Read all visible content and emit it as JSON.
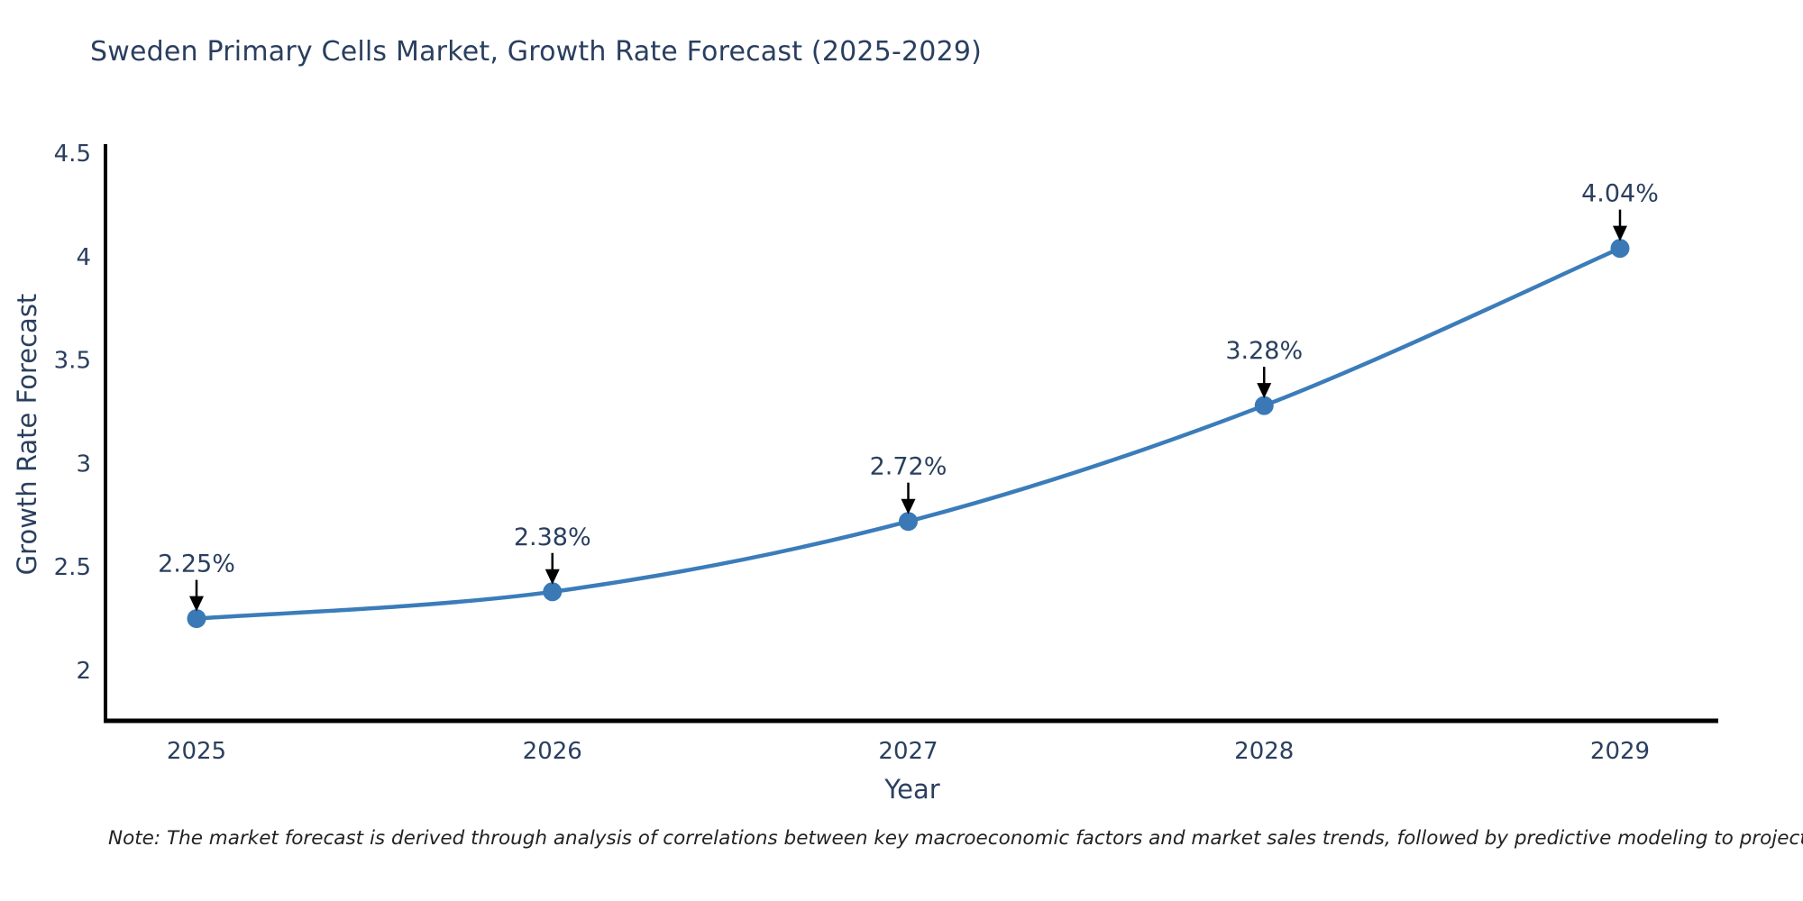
{
  "title": "Sweden Primary Cells Market, Growth Rate Forecast (2025-2029)",
  "note": "Note: The market forecast is derived through analysis of correlations between key macroeconomic factors and market sales trends, followed by predictive modeling to project future sales",
  "chart_data": {
    "type": "line",
    "title": "Sweden Primary Cells Market, Growth Rate Forecast (2025-2029)",
    "xlabel": "Year",
    "ylabel": "Growth Rate Forecast",
    "categories": [
      "2025",
      "2026",
      "2027",
      "2028",
      "2029"
    ],
    "series": [
      {
        "name": "Growth Rate Forecast",
        "values": [
          2.25,
          2.38,
          2.72,
          3.28,
          4.04
        ],
        "point_labels": [
          "2.25%",
          "2.38%",
          "2.72%",
          "3.28%",
          "4.04%"
        ]
      }
    ],
    "yticks": [
      2,
      2.5,
      3,
      3.5,
      4,
      4.5
    ],
    "ylim": [
      1.75,
      4.55
    ],
    "grid": false,
    "legend_position": "none",
    "line_shape": "spline",
    "line_color": "#3b7cba",
    "marker_color": "#3a79b6",
    "axis_line_color": "#000000",
    "tick_label_color": "#2a3f5f",
    "annotation_text_color": "#2a3f5f",
    "annotation_arrow_color": "#000000"
  }
}
